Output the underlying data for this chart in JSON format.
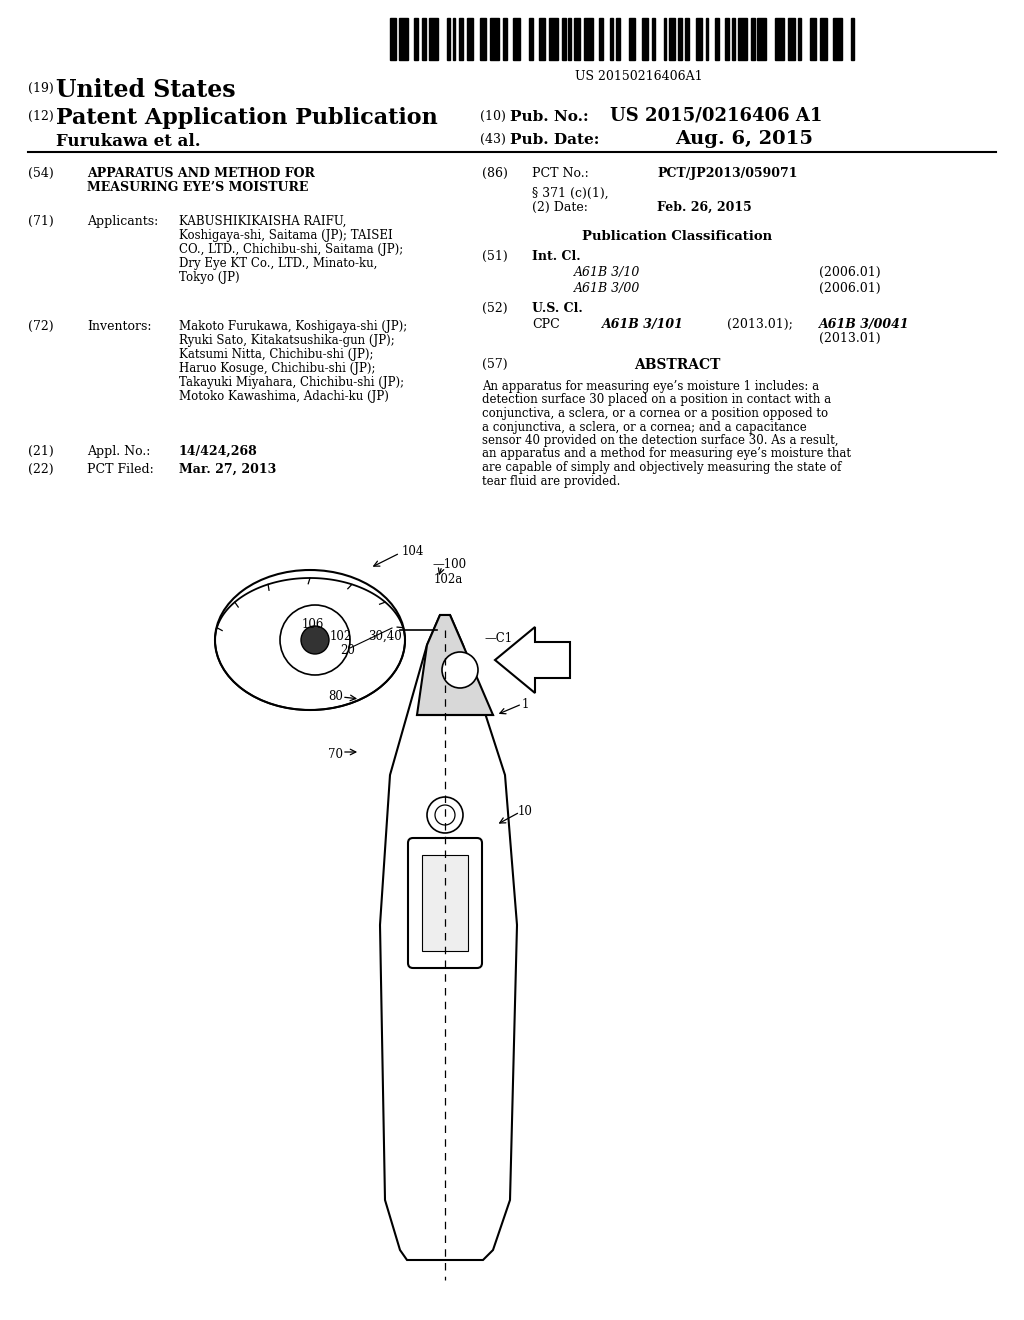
{
  "background_color": "#ffffff",
  "barcode_text": "US 20150216406A1",
  "header": {
    "country_num": "(19)",
    "country": "United States",
    "pub_type_num": "(12)",
    "pub_type": "Patent Application Publication",
    "pub_no_num": "(10)",
    "pub_no_label": "Pub. No.:",
    "pub_no_val": "US 2015/0216406 A1",
    "inventor": "Furukawa et al.",
    "pub_date_num": "(43)",
    "pub_date_label": "Pub. Date:",
    "pub_date_val": "Aug. 6, 2015"
  },
  "left_col": {
    "title_num": "(54)",
    "title_line1": "APPARATUS AND METHOD FOR",
    "title_line2": "MEASURING EYE’S MOISTURE",
    "applicants_num": "(71)",
    "applicants_label": "Applicants:",
    "applicants_lines": [
      "KABUSHIKIKAISHA RAIFU,",
      "Koshigaya-shi, Saitama (JP); TAISEI",
      "CO., LTD., Chichibu-shi, Saitama (JP);",
      "Dry Eye KT Co., LTD., Minato-ku,",
      "Tokyo (JP)"
    ],
    "inventors_num": "(72)",
    "inventors_label": "Inventors:",
    "inventors_lines": [
      "Makoto Furukawa, Koshigaya-shi (JP);",
      "Ryuki Sato, Kitakatsushika-gun (JP);",
      "Katsumi Nitta, Chichibu-shi (JP);",
      "Haruo Kosuge, Chichibu-shi (JP);",
      "Takayuki Miyahara, Chichibu-shi (JP);",
      "Motoko Kawashima, Adachi-ku (JP)"
    ],
    "appl_num": "(21)",
    "appl_label": "Appl. No.:",
    "appl_val": "14/424,268",
    "pct_num": "(22)",
    "pct_label": "PCT Filed:",
    "pct_val": "Mar. 27, 2013"
  },
  "right_col": {
    "pct_no_num": "(86)",
    "pct_no_label": "PCT No.:",
    "pct_no_val": "PCT/JP2013/059071",
    "s371_line1": "§ 371 (c)(1),",
    "s371_line2": "(2) Date:",
    "date_371": "Feb. 26, 2015",
    "pub_class_title": "Publication Classification",
    "int_cl_num": "(51)",
    "int_cl_label": "Int. Cl.",
    "int_cl_entries": [
      [
        "A61B 3/10",
        "(2006.01)"
      ],
      [
        "A61B 3/00",
        "(2006.01)"
      ]
    ],
    "us_cl_num": "(52)",
    "us_cl_label": "U.S. Cl.",
    "cpc_label": "CPC",
    "cpc_italic1": "A61B 3/101",
    "cpc_plain1": "(2013.01);",
    "cpc_italic2": "A61B 3/0041",
    "cpc_plain2": "(2013.01)",
    "abstract_num": "(57)",
    "abstract_title": "ABSTRACT",
    "abstract_text": "An apparatus for measuring eye’s moisture 1 includes: a detection surface 30 placed on a position in contact with a conjunctiva, a sclera, or a cornea or a position opposed to a conjunctiva, a sclera, or a cornea; and a capacitance sensor 40 provided on the detection surface 30. As a result, an apparatus and a method for measuring eye’s moisture that are capable of simply and objectively measuring the state of tear fluid are provided."
  }
}
